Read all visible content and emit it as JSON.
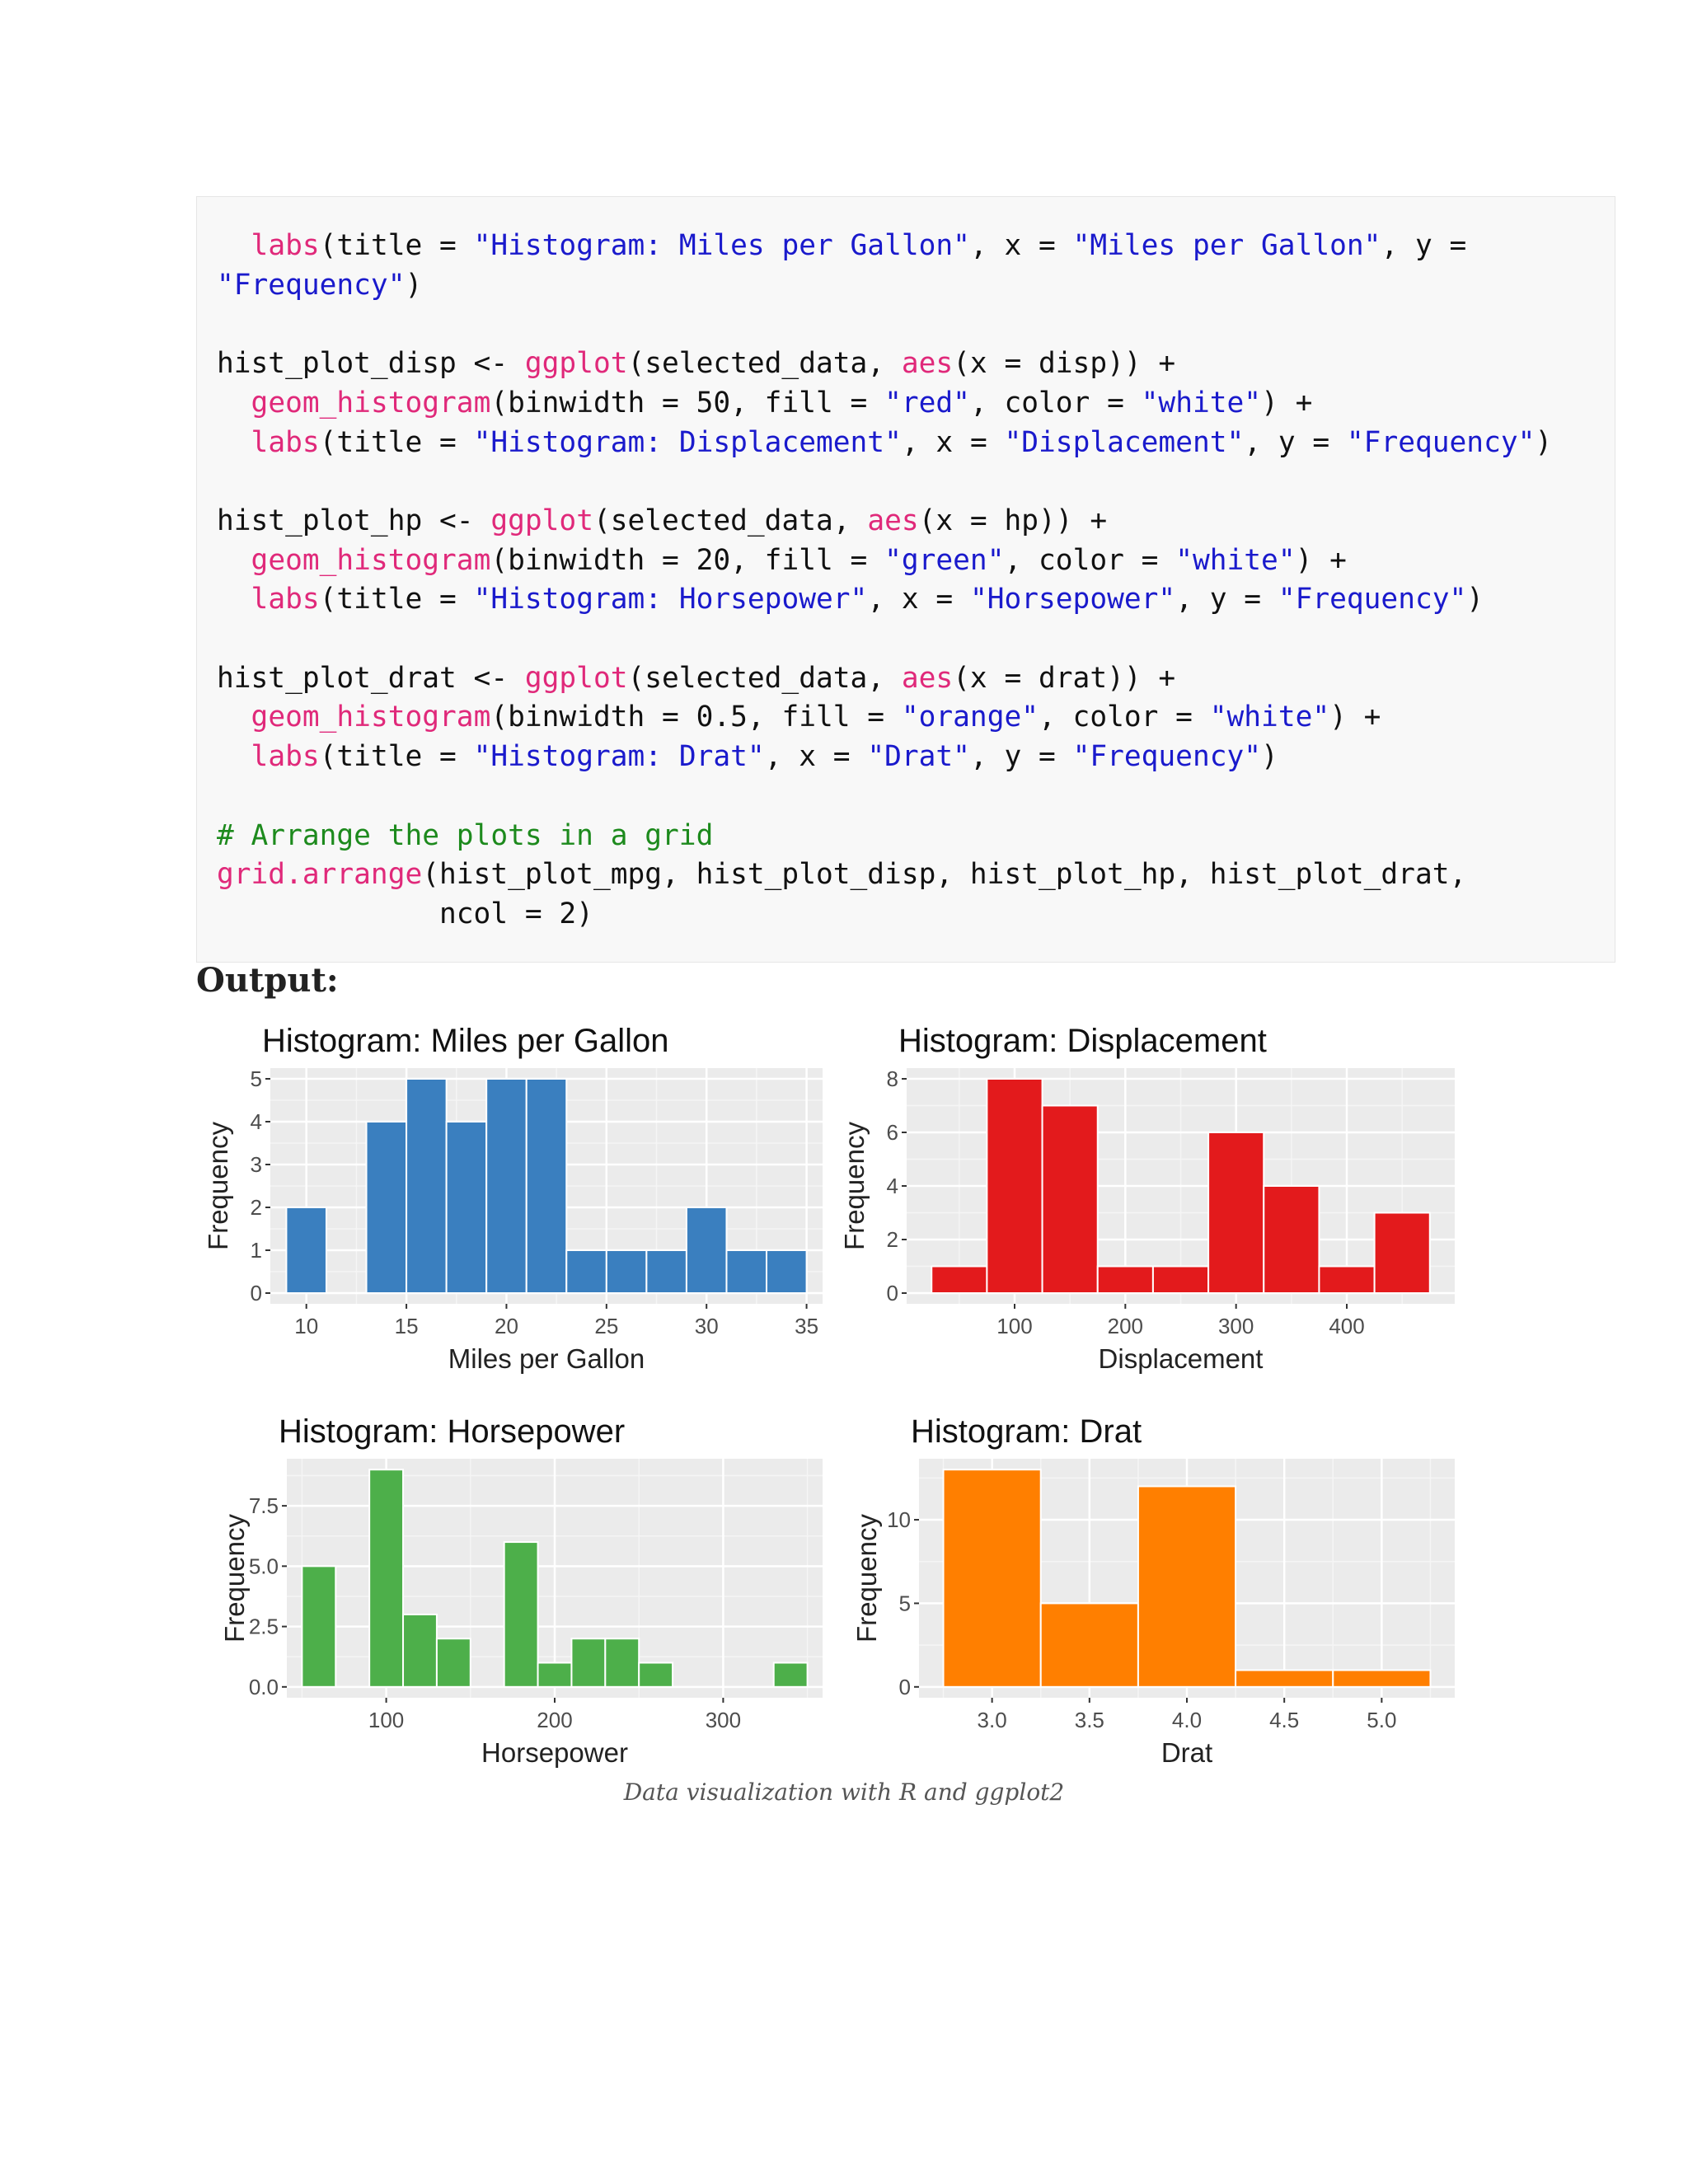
{
  "code": {
    "lines": [
      [
        {
          "t": "  "
        },
        {
          "t": "labs",
          "c": "fn"
        },
        {
          "t": "(title = "
        },
        {
          "t": "\"Histogram: Miles per Gallon\"",
          "c": "str"
        },
        {
          "t": ", x = "
        },
        {
          "t": "\"Miles per Gallon\"",
          "c": "str"
        },
        {
          "t": ", y ="
        }
      ],
      [
        {
          "t": "\"Frequency\"",
          "c": "str"
        },
        {
          "t": ")"
        }
      ],
      [],
      [
        {
          "t": "hist_plot_disp <- "
        },
        {
          "t": "ggplot",
          "c": "fn"
        },
        {
          "t": "(selected_data, "
        },
        {
          "t": "aes",
          "c": "fn"
        },
        {
          "t": "(x = disp)) +"
        }
      ],
      [
        {
          "t": "  "
        },
        {
          "t": "geom_histogram",
          "c": "fn"
        },
        {
          "t": "(binwidth = 50, fill = "
        },
        {
          "t": "\"red\"",
          "c": "str"
        },
        {
          "t": ", color = "
        },
        {
          "t": "\"white\"",
          "c": "str"
        },
        {
          "t": ") +"
        }
      ],
      [
        {
          "t": "  "
        },
        {
          "t": "labs",
          "c": "fn"
        },
        {
          "t": "(title = "
        },
        {
          "t": "\"Histogram: Displacement\"",
          "c": "str"
        },
        {
          "t": ", x = "
        },
        {
          "t": "\"Displacement\"",
          "c": "str"
        },
        {
          "t": ", y = "
        },
        {
          "t": "\"Frequency\"",
          "c": "str"
        },
        {
          "t": ")"
        }
      ],
      [],
      [
        {
          "t": "hist_plot_hp <- "
        },
        {
          "t": "ggplot",
          "c": "fn"
        },
        {
          "t": "(selected_data, "
        },
        {
          "t": "aes",
          "c": "fn"
        },
        {
          "t": "(x = hp)) +"
        }
      ],
      [
        {
          "t": "  "
        },
        {
          "t": "geom_histogram",
          "c": "fn"
        },
        {
          "t": "(binwidth = 20, fill = "
        },
        {
          "t": "\"green\"",
          "c": "str"
        },
        {
          "t": ", color = "
        },
        {
          "t": "\"white\"",
          "c": "str"
        },
        {
          "t": ") +"
        }
      ],
      [
        {
          "t": "  "
        },
        {
          "t": "labs",
          "c": "fn"
        },
        {
          "t": "(title = "
        },
        {
          "t": "\"Histogram: Horsepower\"",
          "c": "str"
        },
        {
          "t": ", x = "
        },
        {
          "t": "\"Horsepower\"",
          "c": "str"
        },
        {
          "t": ", y = "
        },
        {
          "t": "\"Frequency\"",
          "c": "str"
        },
        {
          "t": ")"
        }
      ],
      [],
      [
        {
          "t": "hist_plot_drat <- "
        },
        {
          "t": "ggplot",
          "c": "fn"
        },
        {
          "t": "(selected_data, "
        },
        {
          "t": "aes",
          "c": "fn"
        },
        {
          "t": "(x = drat)) +"
        }
      ],
      [
        {
          "t": "  "
        },
        {
          "t": "geom_histogram",
          "c": "fn"
        },
        {
          "t": "(binwidth = 0.5, fill = "
        },
        {
          "t": "\"orange\"",
          "c": "str"
        },
        {
          "t": ", color = "
        },
        {
          "t": "\"white\"",
          "c": "str"
        },
        {
          "t": ") +"
        }
      ],
      [
        {
          "t": "  "
        },
        {
          "t": "labs",
          "c": "fn"
        },
        {
          "t": "(title = "
        },
        {
          "t": "\"Histogram: Drat\"",
          "c": "str"
        },
        {
          "t": ", x = "
        },
        {
          "t": "\"Drat\"",
          "c": "str"
        },
        {
          "t": ", y = "
        },
        {
          "t": "\"Frequency\"",
          "c": "str"
        },
        {
          "t": ")"
        }
      ],
      [],
      [
        {
          "t": "# Arrange the plots in a grid",
          "c": "cm"
        }
      ],
      [
        {
          "t": "grid.arrange",
          "c": "fn"
        },
        {
          "t": "(hist_plot_mpg, hist_plot_disp, hist_plot_hp, hist_plot_drat,"
        }
      ],
      [
        {
          "t": "             ncol = 2)"
        }
      ]
    ]
  },
  "output_heading": "Output:",
  "caption": "Data visualization with R and ggplot2",
  "colors": {
    "mpg": "#3a7fbf",
    "disp": "#e31a1c",
    "hp": "#4daf4a",
    "drat": "#ff7f00",
    "panel": "#ebebeb",
    "grid": "#ffffff"
  },
  "chart_data": [
    {
      "id": "mpg",
      "type": "bar",
      "title": "Histogram: Miles per Gallon",
      "xlabel": "Miles per Gallon",
      "ylabel": "Frequency",
      "binwidth": 2,
      "bins": [
        [
          9,
          11,
          2
        ],
        [
          13,
          15,
          4
        ],
        [
          15,
          17,
          5
        ],
        [
          17,
          19,
          4
        ],
        [
          19,
          21,
          5
        ],
        [
          21,
          23,
          5
        ],
        [
          23,
          25,
          1
        ],
        [
          25,
          27,
          1
        ],
        [
          27,
          29,
          1
        ],
        [
          29,
          31,
          2
        ],
        [
          31,
          33,
          1
        ],
        [
          33,
          35,
          1
        ]
      ],
      "xlim": [
        8.2,
        35.8
      ],
      "ylim": [
        -0.25,
        5.25
      ],
      "xticks": [
        10,
        15,
        20,
        25,
        30,
        35
      ],
      "xtick_labels": [
        "10",
        "15",
        "20",
        "25",
        "30",
        "35"
      ],
      "yticks": [
        0,
        1,
        2,
        3,
        4,
        5
      ],
      "ytick_labels": [
        "0",
        "1",
        "2",
        "3",
        "4",
        "5"
      ],
      "grid": true
    },
    {
      "id": "disp",
      "type": "bar",
      "title": "Histogram: Displacement",
      "xlabel": "Displacement",
      "ylabel": "Frequency",
      "binwidth": 50,
      "bins": [
        [
          25,
          75,
          1
        ],
        [
          75,
          125,
          8
        ],
        [
          125,
          175,
          7
        ],
        [
          175,
          225,
          1
        ],
        [
          225,
          275,
          1
        ],
        [
          275,
          325,
          6
        ],
        [
          325,
          375,
          4
        ],
        [
          375,
          425,
          1
        ],
        [
          425,
          475,
          3
        ]
      ],
      "xlim": [
        2.5,
        497.5
      ],
      "ylim": [
        -0.4,
        8.4
      ],
      "xticks": [
        100,
        200,
        300,
        400
      ],
      "xtick_labels": [
        "100",
        "200",
        "300",
        "400"
      ],
      "yticks": [
        0,
        2,
        4,
        6,
        8
      ],
      "ytick_labels": [
        "0",
        "2",
        "4",
        "6",
        "8"
      ],
      "grid": true
    },
    {
      "id": "hp",
      "type": "bar",
      "title": "Histogram: Horsepower",
      "xlabel": "Horsepower",
      "ylabel": "Frequency",
      "binwidth": 20,
      "bins": [
        [
          50,
          70,
          5
        ],
        [
          70,
          90,
          0
        ],
        [
          90,
          110,
          9
        ],
        [
          110,
          130,
          3
        ],
        [
          130,
          150,
          2
        ],
        [
          150,
          170,
          0
        ],
        [
          170,
          190,
          6
        ],
        [
          190,
          210,
          1
        ],
        [
          210,
          230,
          2
        ],
        [
          230,
          250,
          2
        ],
        [
          250,
          270,
          1
        ],
        [
          270,
          290,
          0
        ],
        [
          290,
          310,
          0
        ],
        [
          310,
          330,
          0
        ],
        [
          330,
          350,
          1
        ]
      ],
      "xlim": [
        41,
        359
      ],
      "ylim": [
        -0.45,
        9.45
      ],
      "xticks": [
        100,
        200,
        300
      ],
      "xtick_labels": [
        "100",
        "200",
        "300"
      ],
      "yticks": [
        0,
        2.5,
        5,
        7.5
      ],
      "ytick_labels": [
        "0.0",
        "2.5",
        "5.0",
        "7.5"
      ],
      "grid": true
    },
    {
      "id": "drat",
      "type": "bar",
      "title": "Histogram: Drat",
      "xlabel": "Drat",
      "ylabel": "Frequency",
      "binwidth": 0.5,
      "bins": [
        [
          2.75,
          3.25,
          13
        ],
        [
          3.25,
          3.75,
          5
        ],
        [
          3.75,
          4.25,
          12
        ],
        [
          4.25,
          4.75,
          1
        ],
        [
          4.75,
          5.25,
          1
        ]
      ],
      "xlim": [
        2.625,
        5.375
      ],
      "ylim": [
        -0.65,
        13.65
      ],
      "xticks": [
        3.0,
        3.5,
        4.0,
        4.5,
        5.0
      ],
      "xtick_labels": [
        "3.0",
        "3.5",
        "4.0",
        "4.5",
        "5.0"
      ],
      "yticks": [
        0,
        5,
        10
      ],
      "ytick_labels": [
        "0",
        "5",
        "10"
      ],
      "grid": true
    }
  ]
}
